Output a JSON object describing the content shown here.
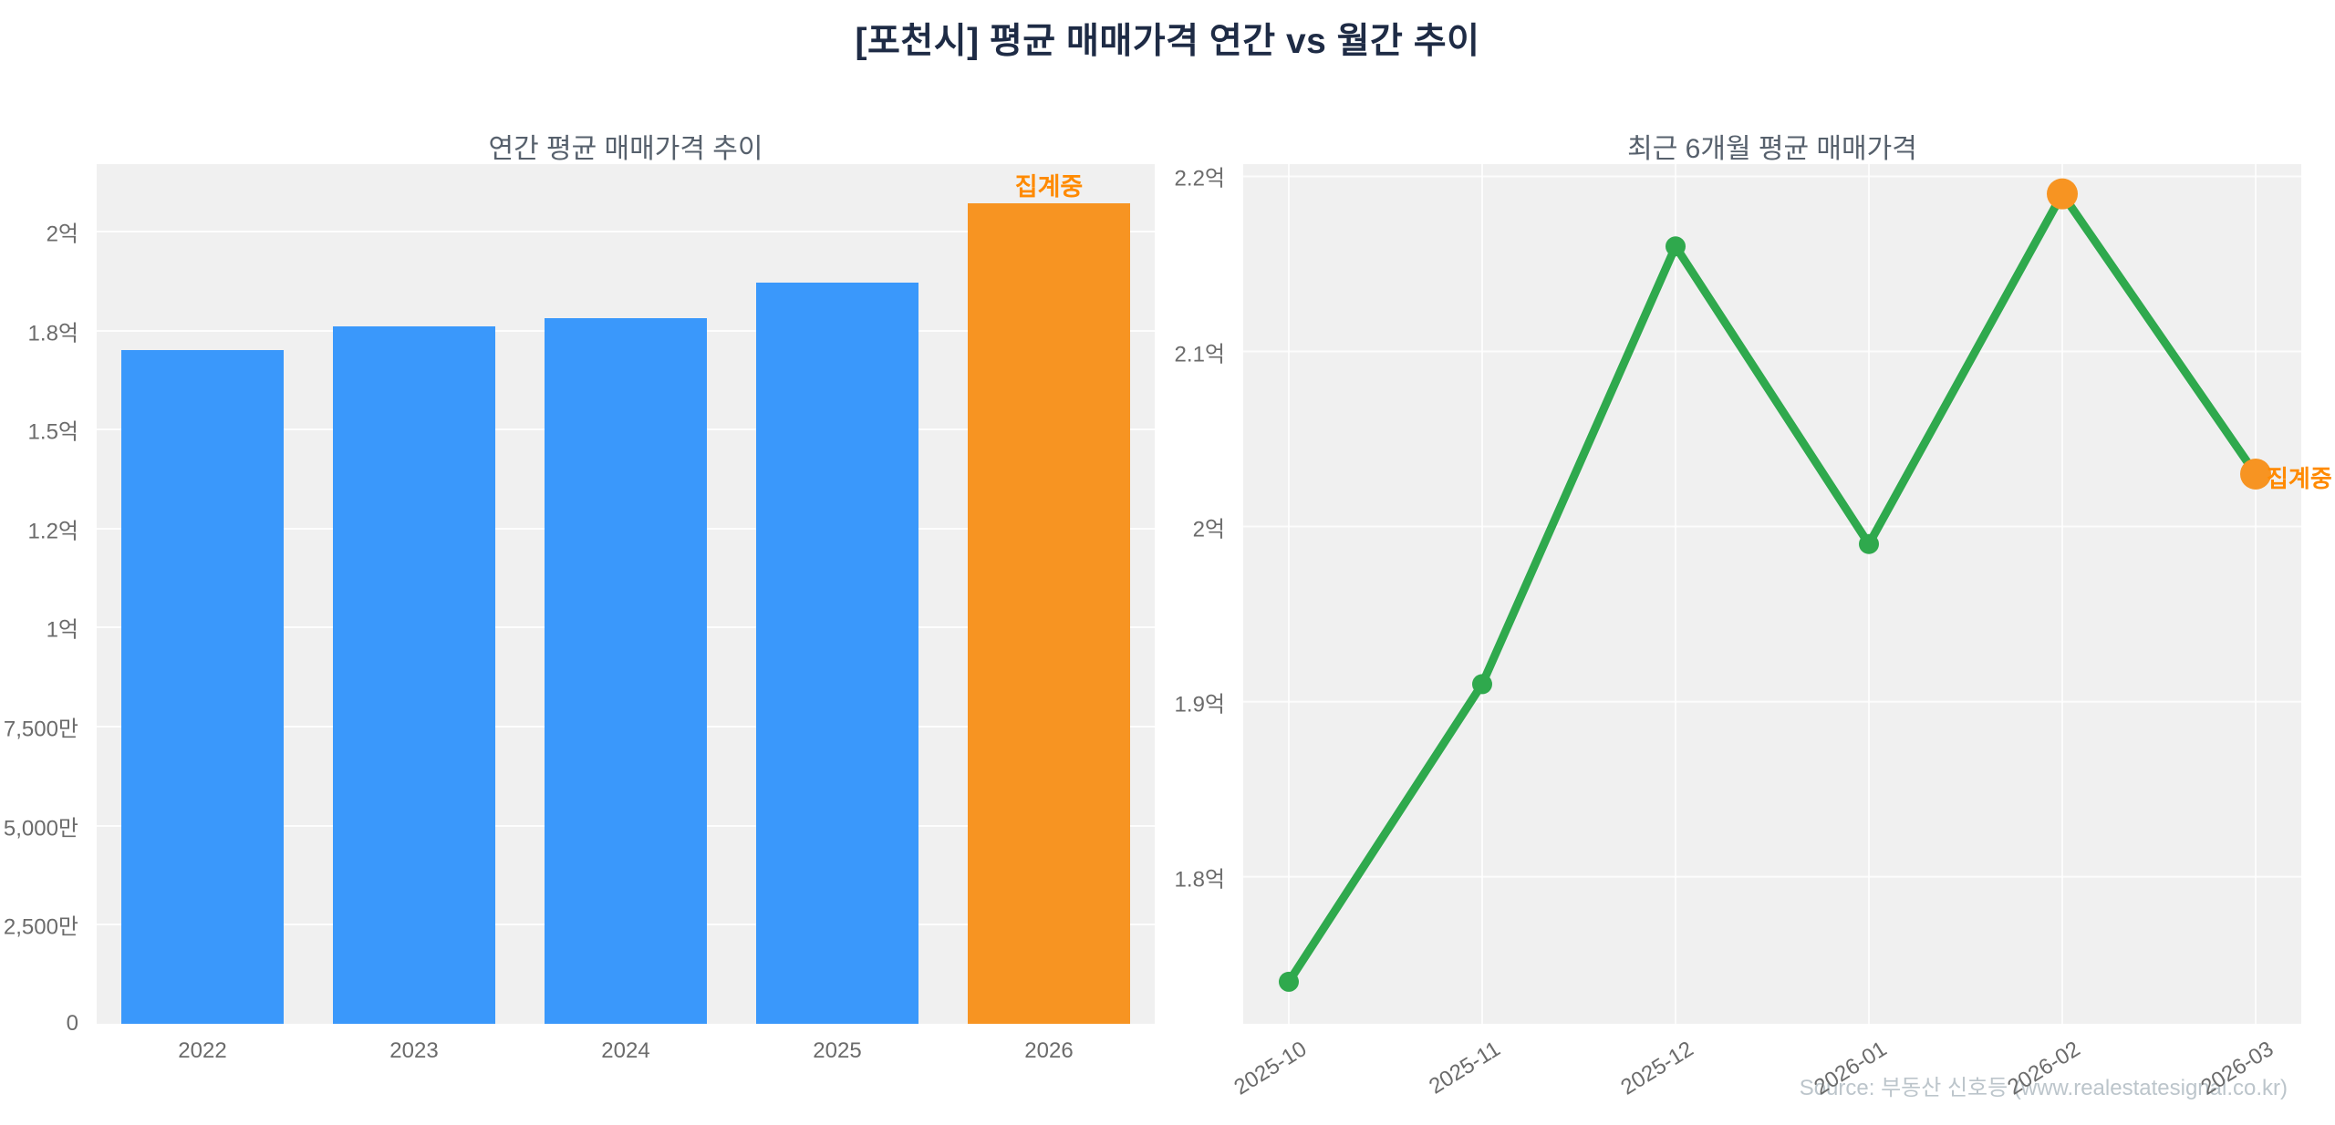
{
  "title": "[포천시] 평균 매매가격 연간 vs 월간 추이",
  "source_text": "Source: 부동산 신호등 (www.realestatesignal.co.kr)",
  "colors": {
    "bar_blue": "#3a98fb",
    "accent_orange": "#f79422",
    "annotation_orange": "#ff8a00",
    "line_green": "#2fa94d",
    "plot_bg": "#f0f0f0",
    "grid": "#ffffff"
  },
  "chart_data": [
    {
      "id": "yearly",
      "type": "bar",
      "title": "연간 평균 매매가격 추이",
      "categories": [
        "2022",
        "2023",
        "2024",
        "2025",
        "2026"
      ],
      "values": [
        1.7,
        1.76,
        1.78,
        1.87,
        2.07
      ],
      "unit": "억",
      "ylim": [
        0,
        2.17
      ],
      "yticks": [
        {
          "value": 0,
          "label": "0"
        },
        {
          "value": 0.25,
          "label": "2,500만"
        },
        {
          "value": 0.5,
          "label": "5,000만"
        },
        {
          "value": 0.75,
          "label": "7,500만"
        },
        {
          "value": 1.0,
          "label": "1억"
        },
        {
          "value": 1.25,
          "label": "1.2억"
        },
        {
          "value": 1.5,
          "label": "1.5억"
        },
        {
          "value": 1.75,
          "label": "1.8억"
        },
        {
          "value": 2.0,
          "label": "2억"
        }
      ],
      "grid": "horizontal",
      "highlight_index": 4,
      "annotation": "집계중"
    },
    {
      "id": "monthly",
      "type": "line",
      "title": "최근 6개월 평균 매매가격",
      "x": [
        "2025-10",
        "2025-11",
        "2025-12",
        "2026-01",
        "2026-02",
        "2026-03"
      ],
      "values": [
        1.74,
        1.91,
        2.16,
        1.99,
        2.19,
        2.03
      ],
      "unit": "억",
      "ylim": [
        1.716,
        2.207
      ],
      "yticks": [
        {
          "value": 1.8,
          "label": "1.8억"
        },
        {
          "value": 1.9,
          "label": "1.9억"
        },
        {
          "value": 2.0,
          "label": "2억"
        },
        {
          "value": 2.1,
          "label": "2.1억"
        },
        {
          "value": 2.2,
          "label": "2.2억"
        }
      ],
      "grid": "both",
      "highlight_indices": [
        4,
        5
      ],
      "annotation": "집계중",
      "annotation_index": 5
    }
  ]
}
